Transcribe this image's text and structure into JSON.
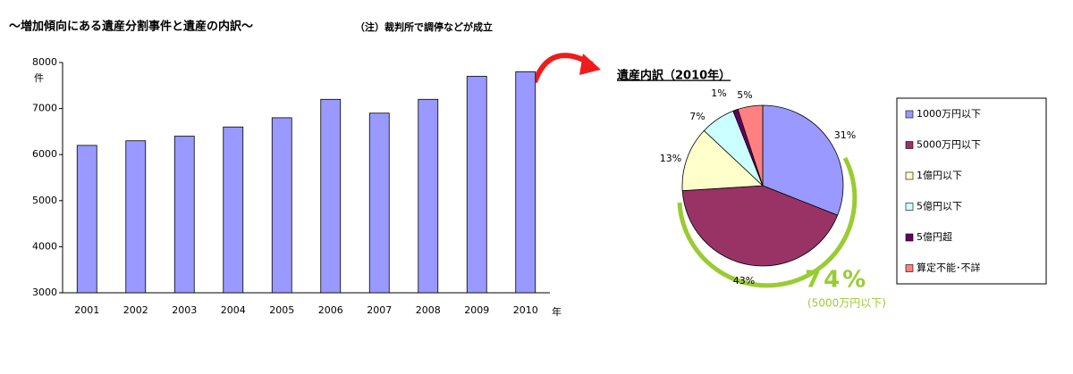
{
  "chart_data": [
    {
      "type": "bar",
      "title": "～増加傾向にある遺産分割事件と遺産の内訳～",
      "subtitle": "（注）裁判所で調停などが成立",
      "y_label": "件",
      "x_label": "年",
      "categories": [
        "2001",
        "2002",
        "2003",
        "2004",
        "2005",
        "2006",
        "2007",
        "2008",
        "2009",
        "2010"
      ],
      "values": [
        6200,
        6300,
        6400,
        6600,
        6800,
        7200,
        6900,
        7200,
        7700,
        7800
      ],
      "color": "#9999ff",
      "ylim": [
        3000,
        8000
      ],
      "yticks": [
        3000,
        4000,
        5000,
        6000,
        7000,
        8000
      ],
      "grid": false
    },
    {
      "type": "pie",
      "title": "遺産内訳（2010年）",
      "categories": [
        "1000万円以下",
        "5000万円以下",
        "1億円以下",
        "5億円以下",
        "5億円超",
        "算定不能･不詳"
      ],
      "values": [
        31,
        43,
        13,
        7,
        1,
        5
      ],
      "value_labels": [
        "31%",
        "43%",
        "13%",
        "7%",
        "1%",
        "5%"
      ],
      "colors": [
        "#9999ff",
        "#993366",
        "#ffffcc",
        "#ccffff",
        "#660066",
        "#ff8080"
      ],
      "annotation": "74%",
      "annotation_note": "(5000万円以下)",
      "legend": "right"
    }
  ]
}
